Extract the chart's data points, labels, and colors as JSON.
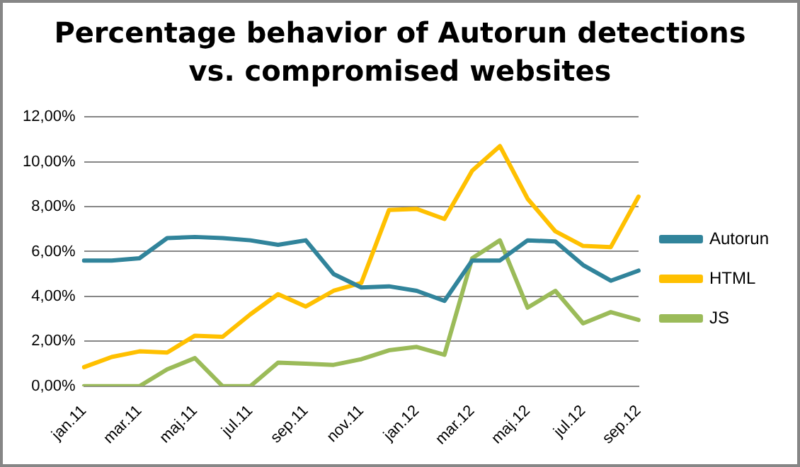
{
  "chart_data": {
    "type": "line",
    "title": "Percentage behavior of Autorun detections vs. compromised websites",
    "categories": [
      "jan.11",
      null,
      "mar.11",
      null,
      "maj.11",
      null,
      "jul.11",
      null,
      "sep.11",
      null,
      "nov.11",
      null,
      "jan.12",
      null,
      "mar.12",
      null,
      "maj.12",
      null,
      "jul.12",
      null,
      "sep.12"
    ],
    "series": [
      {
        "name": "Autorun",
        "color": "#31849b",
        "values": [
          5.6,
          5.6,
          5.7,
          6.6,
          6.65,
          6.6,
          6.5,
          6.3,
          6.5,
          5.0,
          4.4,
          4.45,
          4.25,
          3.8,
          5.6,
          5.6,
          6.5,
          6.45,
          5.4,
          4.7,
          5.15
        ]
      },
      {
        "name": "HTML",
        "color": "#ffc000",
        "values": [
          0.85,
          1.3,
          1.55,
          1.5,
          2.25,
          2.2,
          3.2,
          4.1,
          3.55,
          4.25,
          4.6,
          7.85,
          7.9,
          7.45,
          9.6,
          10.7,
          8.35,
          6.9,
          6.25,
          6.2,
          8.45
        ]
      },
      {
        "name": "JS",
        "color": "#9bbb59",
        "values": [
          0,
          0,
          0,
          0.75,
          1.25,
          0,
          0,
          1.05,
          1.0,
          0.95,
          1.2,
          1.6,
          1.75,
          1.4,
          5.7,
          6.5,
          3.5,
          4.25,
          2.8,
          3.3,
          2.95
        ]
      }
    ],
    "ylim": [
      0,
      12
    ],
    "yticks": [
      {
        "value": 0,
        "label": "0,00%"
      },
      {
        "value": 2,
        "label": "2,00%"
      },
      {
        "value": 4,
        "label": "4,00%"
      },
      {
        "value": 6,
        "label": "6,00%"
      },
      {
        "value": 8,
        "label": "8,00%"
      },
      {
        "value": 10,
        "label": "10,00%"
      },
      {
        "value": 12,
        "label": "12,00%"
      }
    ],
    "grid": "y",
    "legend": "right",
    "marker": "none"
  }
}
